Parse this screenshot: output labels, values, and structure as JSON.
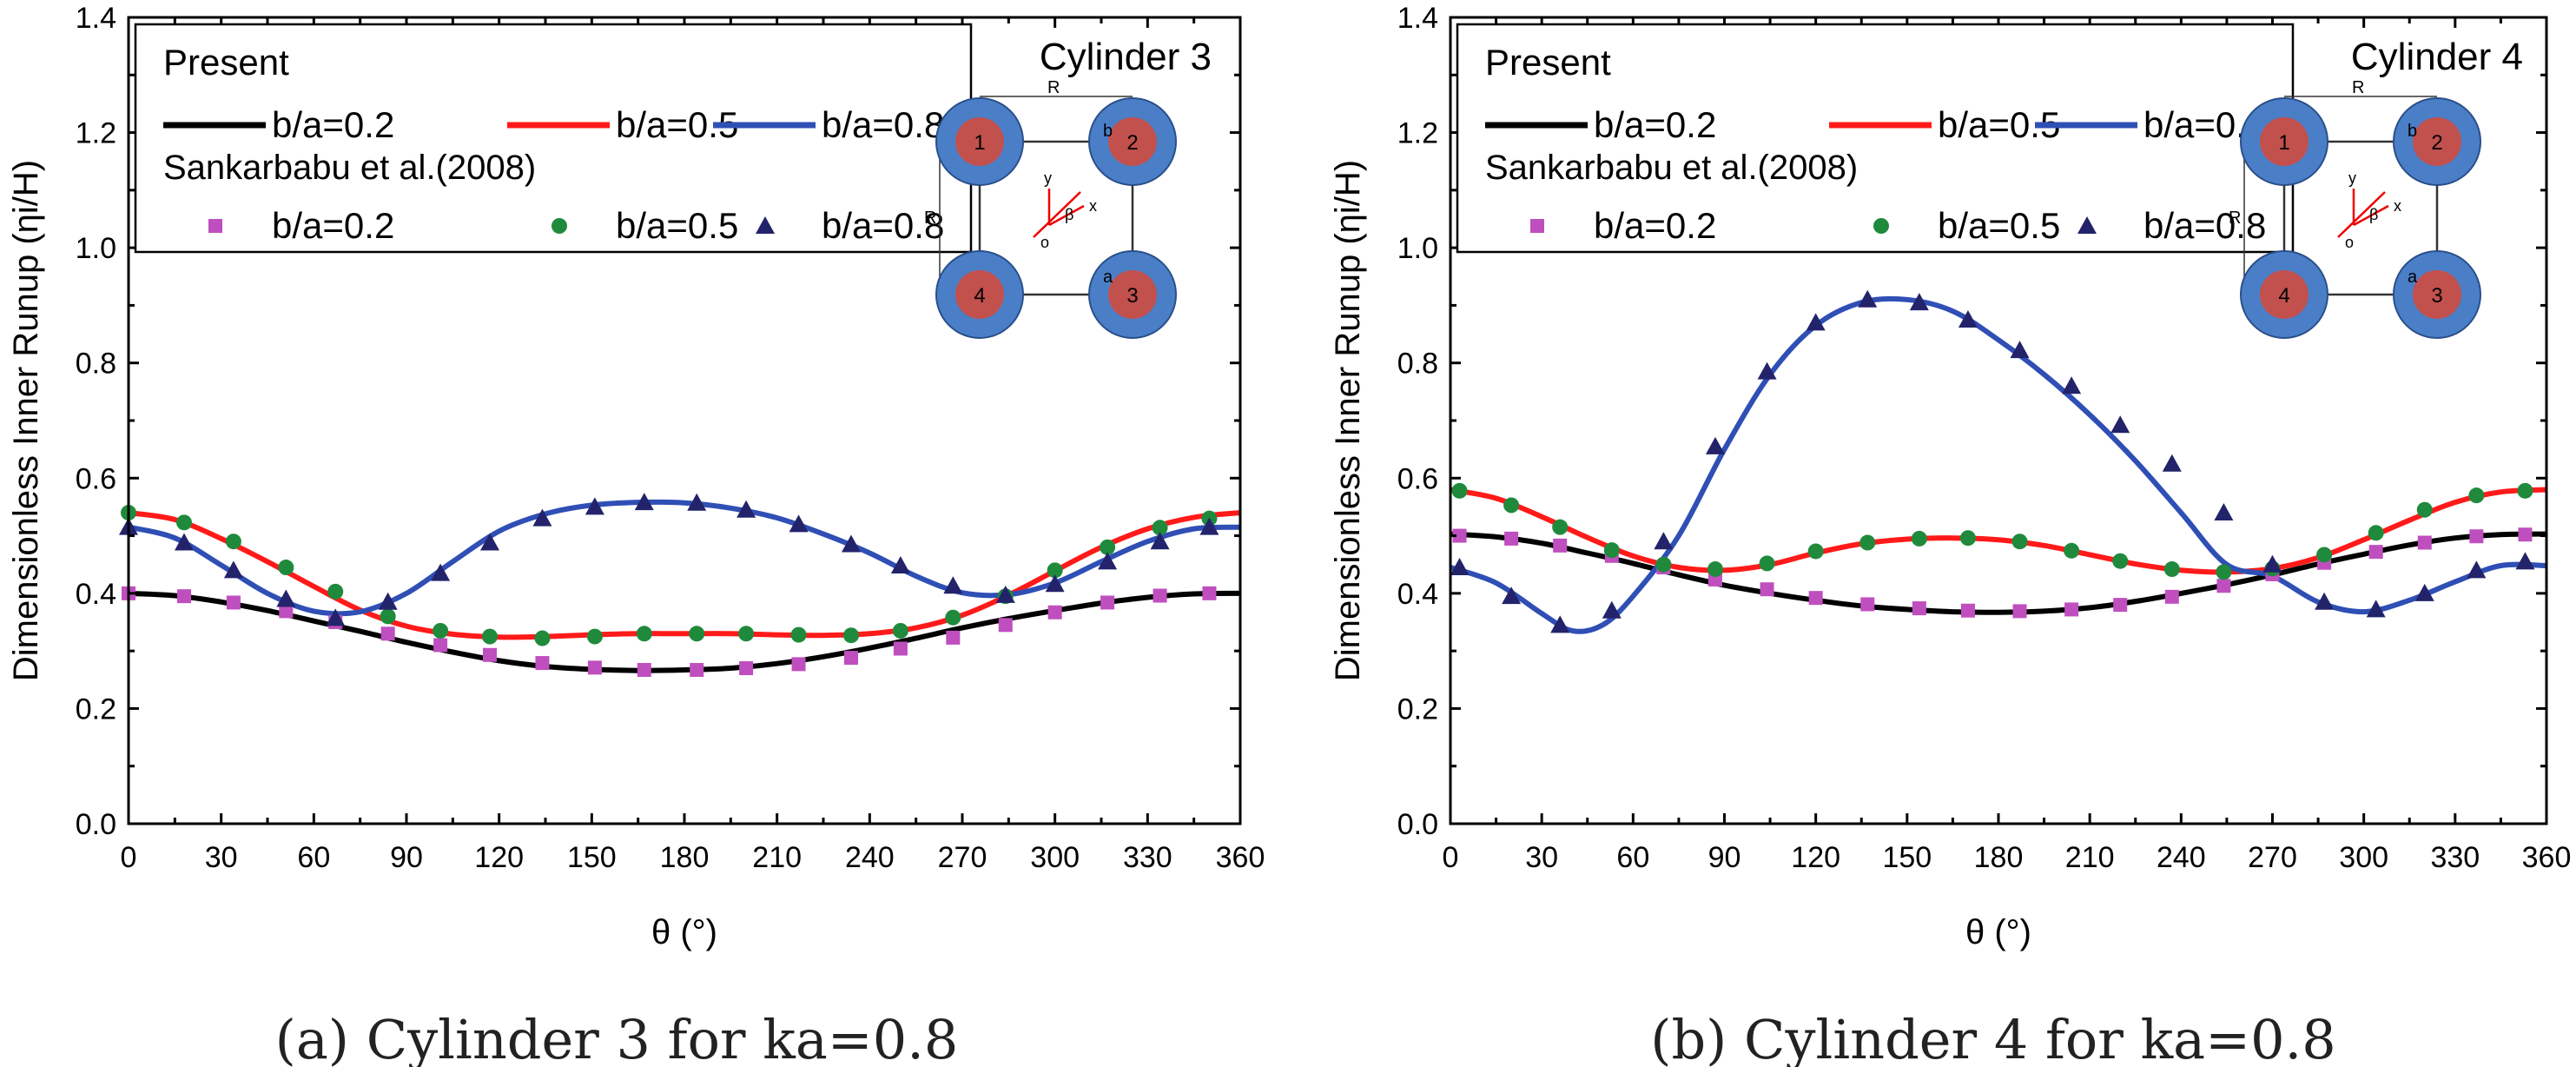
{
  "chart_data": [
    {
      "type": "line",
      "title": "Cylinder 3",
      "caption": "(a) Cylinder 3 for ka=0.8",
      "xlabel": "θ (°)",
      "ylabel": "Dimensionless Inner Runup (ηi/H)",
      "xlim": [
        0,
        360
      ],
      "ylim": [
        0,
        1.4
      ],
      "xticks": [
        0,
        30,
        60,
        90,
        120,
        150,
        180,
        210,
        240,
        270,
        300,
        330,
        360
      ],
      "yticks": [
        0.0,
        0.2,
        0.4,
        0.6,
        0.8,
        1.0,
        1.2,
        1.4
      ],
      "legend": {
        "present_label": "Present",
        "reference_label": "Sankarbabu et al.(2008)",
        "position": "top-left"
      },
      "schematic": {
        "labels": [
          "1",
          "2",
          "3",
          "4"
        ],
        "dimension_labels": [
          "R",
          "b",
          "a",
          "x",
          "y",
          "o",
          "β"
        ]
      },
      "series": [
        {
          "name": "b/a=0.2",
          "color": "#000000",
          "marker_color": "#bf4fbf",
          "marker": "square",
          "x": [
            0,
            15,
            30,
            45,
            60,
            75,
            90,
            105,
            120,
            135,
            150,
            165,
            180,
            195,
            210,
            225,
            240,
            255,
            270,
            285,
            300,
            315,
            330,
            345,
            360
          ],
          "values": [
            0.4,
            0.396,
            0.385,
            0.37,
            0.352,
            0.334,
            0.315,
            0.298,
            0.283,
            0.273,
            0.268,
            0.266,
            0.267,
            0.27,
            0.278,
            0.29,
            0.305,
            0.322,
            0.34,
            0.356,
            0.37,
            0.383,
            0.393,
            0.399,
            0.4
          ],
          "marker_x": [
            0,
            18,
            34,
            51,
            67,
            84,
            101,
            117,
            134,
            151,
            167,
            184,
            200,
            217,
            234,
            250,
            267,
            284,
            300,
            317,
            334,
            350
          ],
          "marker_values": [
            0.4,
            0.395,
            0.384,
            0.369,
            0.35,
            0.33,
            0.31,
            0.293,
            0.279,
            0.271,
            0.267,
            0.267,
            0.27,
            0.277,
            0.288,
            0.304,
            0.323,
            0.345,
            0.367,
            0.384,
            0.396,
            0.4
          ]
        },
        {
          "name": "b/a=0.5",
          "color": "#ff1a1a",
          "marker_color": "#1f8a3c",
          "marker": "circle",
          "x": [
            0,
            15,
            30,
            45,
            60,
            75,
            90,
            105,
            120,
            135,
            150,
            165,
            180,
            195,
            210,
            225,
            240,
            255,
            270,
            285,
            300,
            315,
            330,
            345,
            360
          ],
          "values": [
            0.54,
            0.528,
            0.495,
            0.455,
            0.412,
            0.371,
            0.343,
            0.329,
            0.324,
            0.325,
            0.328,
            0.33,
            0.33,
            0.33,
            0.328,
            0.327,
            0.33,
            0.34,
            0.362,
            0.397,
            0.439,
            0.48,
            0.512,
            0.532,
            0.54
          ],
          "marker_x": [
            0,
            18,
            34,
            51,
            67,
            84,
            101,
            117,
            134,
            151,
            167,
            184,
            200,
            217,
            234,
            250,
            267,
            284,
            300,
            317,
            334,
            350
          ],
          "marker_values": [
            0.54,
            0.523,
            0.49,
            0.445,
            0.403,
            0.36,
            0.335,
            0.325,
            0.322,
            0.325,
            0.33,
            0.33,
            0.33,
            0.328,
            0.327,
            0.335,
            0.358,
            0.395,
            0.44,
            0.48,
            0.514,
            0.53
          ]
        },
        {
          "name": "b/a=0.8",
          "color": "#2f4fb5",
          "marker_color": "#23236b",
          "marker": "triangle",
          "x": [
            0,
            15,
            30,
            45,
            60,
            75,
            90,
            105,
            120,
            135,
            150,
            165,
            180,
            195,
            210,
            225,
            240,
            255,
            270,
            285,
            300,
            315,
            330,
            345,
            360
          ],
          "values": [
            0.515,
            0.496,
            0.449,
            0.4,
            0.369,
            0.368,
            0.4,
            0.455,
            0.508,
            0.538,
            0.553,
            0.558,
            0.557,
            0.548,
            0.531,
            0.503,
            0.47,
            0.43,
            0.401,
            0.398,
            0.418,
            0.455,
            0.49,
            0.512,
            0.515
          ],
          "marker_x": [
            0,
            18,
            34,
            51,
            67,
            84,
            101,
            117,
            134,
            151,
            167,
            184,
            200,
            217,
            234,
            250,
            267,
            284,
            300,
            317,
            334,
            350
          ],
          "marker_values": [
            0.515,
            0.488,
            0.44,
            0.39,
            0.357,
            0.385,
            0.435,
            0.488,
            0.53,
            0.55,
            0.558,
            0.557,
            0.545,
            0.52,
            0.485,
            0.448,
            0.413,
            0.397,
            0.416,
            0.455,
            0.49,
            0.515
          ]
        }
      ]
    },
    {
      "type": "line",
      "title": "Cylinder 4",
      "caption": "(b) Cylinder 4 for ka=0.8",
      "xlabel": "θ (°)",
      "ylabel": "Dimensionless Inner Runup (ηi/H)",
      "xlim": [
        0,
        360
      ],
      "ylim": [
        0,
        1.4
      ],
      "xticks": [
        0,
        30,
        60,
        90,
        120,
        150,
        180,
        210,
        240,
        270,
        300,
        330,
        360
      ],
      "yticks": [
        0.0,
        0.2,
        0.4,
        0.6,
        0.8,
        1.0,
        1.2,
        1.4
      ],
      "legend": {
        "present_label": "Present",
        "reference_label": "Sankarbabu et al.(2008)",
        "position": "top-left"
      },
      "schematic": {
        "labels": [
          "1",
          "2",
          "3",
          "4"
        ],
        "dimension_labels": [
          "R",
          "b",
          "a",
          "x",
          "y",
          "o",
          "β"
        ]
      },
      "series": [
        {
          "name": "b/a=0.2",
          "color": "#000000",
          "marker_color": "#bf4fbf",
          "marker": "square",
          "x": [
            0,
            15,
            30,
            45,
            60,
            75,
            90,
            105,
            120,
            135,
            150,
            165,
            180,
            195,
            210,
            225,
            240,
            255,
            270,
            285,
            300,
            315,
            330,
            345,
            360
          ],
          "values": [
            0.503,
            0.498,
            0.487,
            0.47,
            0.452,
            0.432,
            0.414,
            0.4,
            0.388,
            0.378,
            0.372,
            0.368,
            0.367,
            0.369,
            0.375,
            0.386,
            0.4,
            0.415,
            0.432,
            0.451,
            0.468,
            0.484,
            0.496,
            0.502,
            0.503
          ],
          "marker_x": [
            3,
            20,
            36,
            53,
            70,
            87,
            104,
            120,
            137,
            154,
            170,
            187,
            204,
            220,
            237,
            254,
            270,
            287,
            304,
            320,
            337,
            353
          ],
          "marker_values": [
            0.5,
            0.495,
            0.483,
            0.465,
            0.445,
            0.424,
            0.407,
            0.392,
            0.381,
            0.374,
            0.37,
            0.369,
            0.372,
            0.38,
            0.394,
            0.413,
            0.433,
            0.453,
            0.472,
            0.488,
            0.499,
            0.502
          ]
        },
        {
          "name": "b/a=0.5",
          "color": "#ff1a1a",
          "marker_color": "#1f8a3c",
          "marker": "circle",
          "x": [
            0,
            15,
            30,
            45,
            60,
            75,
            90,
            105,
            120,
            135,
            150,
            165,
            180,
            195,
            210,
            225,
            240,
            255,
            270,
            285,
            300,
            315,
            330,
            345,
            360
          ],
          "values": [
            0.58,
            0.565,
            0.533,
            0.497,
            0.465,
            0.445,
            0.44,
            0.45,
            0.47,
            0.486,
            0.494,
            0.496,
            0.493,
            0.483,
            0.467,
            0.451,
            0.44,
            0.437,
            0.443,
            0.462,
            0.493,
            0.527,
            0.558,
            0.576,
            0.58
          ],
          "marker_x": [
            3,
            20,
            36,
            53,
            70,
            87,
            104,
            120,
            137,
            154,
            170,
            187,
            204,
            220,
            237,
            254,
            270,
            287,
            304,
            320,
            337,
            353
          ],
          "marker_values": [
            0.578,
            0.553,
            0.515,
            0.475,
            0.45,
            0.442,
            0.452,
            0.473,
            0.488,
            0.495,
            0.496,
            0.49,
            0.474,
            0.456,
            0.442,
            0.437,
            0.443,
            0.467,
            0.505,
            0.545,
            0.57,
            0.578
          ]
        },
        {
          "name": "b/a=0.8",
          "color": "#2f4fb5",
          "marker_color": "#23236b",
          "marker": "triangle",
          "x": [
            0,
            15,
            30,
            40,
            50,
            60,
            75,
            90,
            105,
            120,
            135,
            150,
            165,
            180,
            195,
            210,
            225,
            240,
            255,
            270,
            285,
            300,
            315,
            330,
            345,
            360
          ],
          "values": [
            0.445,
            0.418,
            0.365,
            0.335,
            0.345,
            0.395,
            0.5,
            0.65,
            0.78,
            0.865,
            0.905,
            0.91,
            0.89,
            0.84,
            0.78,
            0.71,
            0.63,
            0.54,
            0.45,
            0.43,
            0.385,
            0.368,
            0.388,
            0.42,
            0.448,
            0.448
          ],
          "marker_x": [
            3,
            20,
            36,
            53,
            70,
            87,
            104,
            120,
            137,
            154,
            170,
            187,
            204,
            220,
            237,
            254,
            270,
            287,
            304,
            320,
            337,
            353
          ],
          "marker_values": [
            0.445,
            0.395,
            0.345,
            0.37,
            0.49,
            0.655,
            0.785,
            0.87,
            0.91,
            0.905,
            0.875,
            0.822,
            0.76,
            0.692,
            0.625,
            0.54,
            0.45,
            0.385,
            0.372,
            0.4,
            0.44,
            0.455
          ]
        }
      ]
    }
  ]
}
